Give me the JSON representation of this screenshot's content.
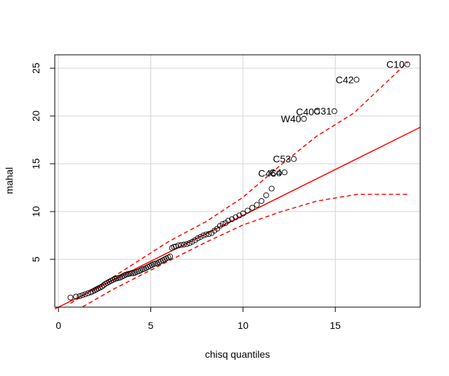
{
  "chart_data": {
    "type": "scatter",
    "title": "",
    "xlabel": "chisq quantiles",
    "ylabel": "mahal",
    "xlim": [
      -0.2,
      19.6
    ],
    "ylim": [
      0.0,
      26.4
    ],
    "xticks": [
      0,
      5,
      10,
      15
    ],
    "yticks": [
      5,
      10,
      15,
      20,
      25
    ],
    "grid": true,
    "colors": {
      "points": "#000000",
      "reference": "#ff0000",
      "envelope": "#ff0000",
      "grid": "#d3d3d3"
    },
    "points": [
      [
        0.65,
        1.0
      ],
      [
        0.95,
        1.1
      ],
      [
        1.15,
        1.15
      ],
      [
        1.3,
        1.25
      ],
      [
        1.45,
        1.35
      ],
      [
        1.6,
        1.45
      ],
      [
        1.75,
        1.55
      ],
      [
        1.85,
        1.65
      ],
      [
        1.95,
        1.75
      ],
      [
        2.05,
        1.85
      ],
      [
        2.15,
        1.95
      ],
      [
        2.25,
        2.05
      ],
      [
        2.35,
        2.15
      ],
      [
        2.45,
        2.3
      ],
      [
        2.55,
        2.45
      ],
      [
        2.65,
        2.55
      ],
      [
        2.75,
        2.65
      ],
      [
        2.85,
        2.75
      ],
      [
        2.95,
        2.85
      ],
      [
        3.05,
        2.95
      ],
      [
        3.15,
        3.0
      ],
      [
        3.25,
        3.05
      ],
      [
        3.35,
        3.1
      ],
      [
        3.45,
        3.2
      ],
      [
        3.55,
        3.3
      ],
      [
        3.65,
        3.4
      ],
      [
        3.75,
        3.45
      ],
      [
        3.85,
        3.5
      ],
      [
        3.95,
        3.55
      ],
      [
        4.05,
        3.55
      ],
      [
        4.15,
        3.6
      ],
      [
        4.25,
        3.7
      ],
      [
        4.35,
        3.75
      ],
      [
        4.45,
        3.85
      ],
      [
        4.55,
        3.95
      ],
      [
        4.65,
        4.0
      ],
      [
        4.75,
        4.1
      ],
      [
        4.85,
        4.2
      ],
      [
        4.95,
        4.3
      ],
      [
        5.05,
        4.4
      ],
      [
        5.15,
        4.5
      ],
      [
        5.25,
        4.55
      ],
      [
        5.35,
        4.6
      ],
      [
        5.45,
        4.7
      ],
      [
        5.55,
        4.8
      ],
      [
        5.65,
        4.9
      ],
      [
        5.75,
        5.0
      ],
      [
        5.85,
        5.1
      ],
      [
        5.95,
        5.2
      ],
      [
        6.05,
        5.3
      ],
      [
        6.15,
        6.2
      ],
      [
        6.25,
        6.3
      ],
      [
        6.35,
        6.35
      ],
      [
        6.5,
        6.45
      ],
      [
        6.65,
        6.5
      ],
      [
        6.8,
        6.55
      ],
      [
        6.95,
        6.6
      ],
      [
        7.1,
        6.7
      ],
      [
        7.25,
        6.85
      ],
      [
        7.4,
        7.0
      ],
      [
        7.55,
        7.2
      ],
      [
        7.7,
        7.35
      ],
      [
        7.85,
        7.5
      ],
      [
        8.0,
        7.6
      ],
      [
        8.15,
        7.65
      ],
      [
        8.3,
        7.75
      ],
      [
        8.45,
        8.0
      ],
      [
        8.6,
        8.2
      ],
      [
        8.75,
        8.5
      ],
      [
        8.9,
        8.7
      ],
      [
        9.05,
        8.8
      ],
      [
        9.2,
        9.05
      ],
      [
        9.4,
        9.2
      ],
      [
        9.6,
        9.4
      ],
      [
        9.8,
        9.6
      ],
      [
        10.0,
        9.8
      ],
      [
        10.25,
        10.1
      ],
      [
        10.5,
        10.4
      ],
      [
        10.75,
        10.7
      ],
      [
        11.0,
        11.1
      ],
      [
        11.25,
        11.7
      ],
      [
        11.55,
        12.4
      ],
      [
        11.95,
        14.0
      ],
      [
        12.25,
        14.1
      ],
      [
        12.75,
        15.5
      ],
      [
        13.3,
        19.7
      ],
      [
        14.0,
        20.45
      ],
      [
        14.95,
        20.5
      ],
      [
        16.15,
        23.8
      ],
      [
        18.9,
        25.4
      ]
    ],
    "point_labels": [
      {
        "label": "C10",
        "x": 18.9,
        "y": 25.4
      },
      {
        "label": "C42",
        "x": 16.15,
        "y": 23.8
      },
      {
        "label": "C40",
        "x": 14.0,
        "y": 20.45
      },
      {
        "label": "C31",
        "x": 14.95,
        "y": 20.5
      },
      {
        "label": "W40",
        "x": 13.3,
        "y": 19.7
      },
      {
        "label": "C53",
        "x": 12.75,
        "y": 15.5
      },
      {
        "label": "C46",
        "x": 11.95,
        "y": 14.0
      },
      {
        "label": "C4",
        "x": 12.25,
        "y": 14.1
      }
    ],
    "reference_line": {
      "intercept": 0.0,
      "slope": 0.96
    },
    "envelope_upper": [
      [
        0.65,
        0.4
      ],
      [
        3.0,
        3.2
      ],
      [
        6.0,
        6.9
      ],
      [
        8.0,
        8.95
      ],
      [
        10.0,
        11.5
      ],
      [
        12.0,
        14.8
      ],
      [
        14.0,
        17.9
      ],
      [
        16.0,
        20.3
      ],
      [
        18.9,
        25.6
      ]
    ],
    "envelope_lower": [
      [
        0.65,
        -0.7
      ],
      [
        3.0,
        1.9
      ],
      [
        6.0,
        4.85
      ],
      [
        8.0,
        6.8
      ],
      [
        10.0,
        8.6
      ],
      [
        12.0,
        9.95
      ],
      [
        14.0,
        11.1
      ],
      [
        16.2,
        11.8
      ],
      [
        18.9,
        11.8
      ]
    ]
  }
}
